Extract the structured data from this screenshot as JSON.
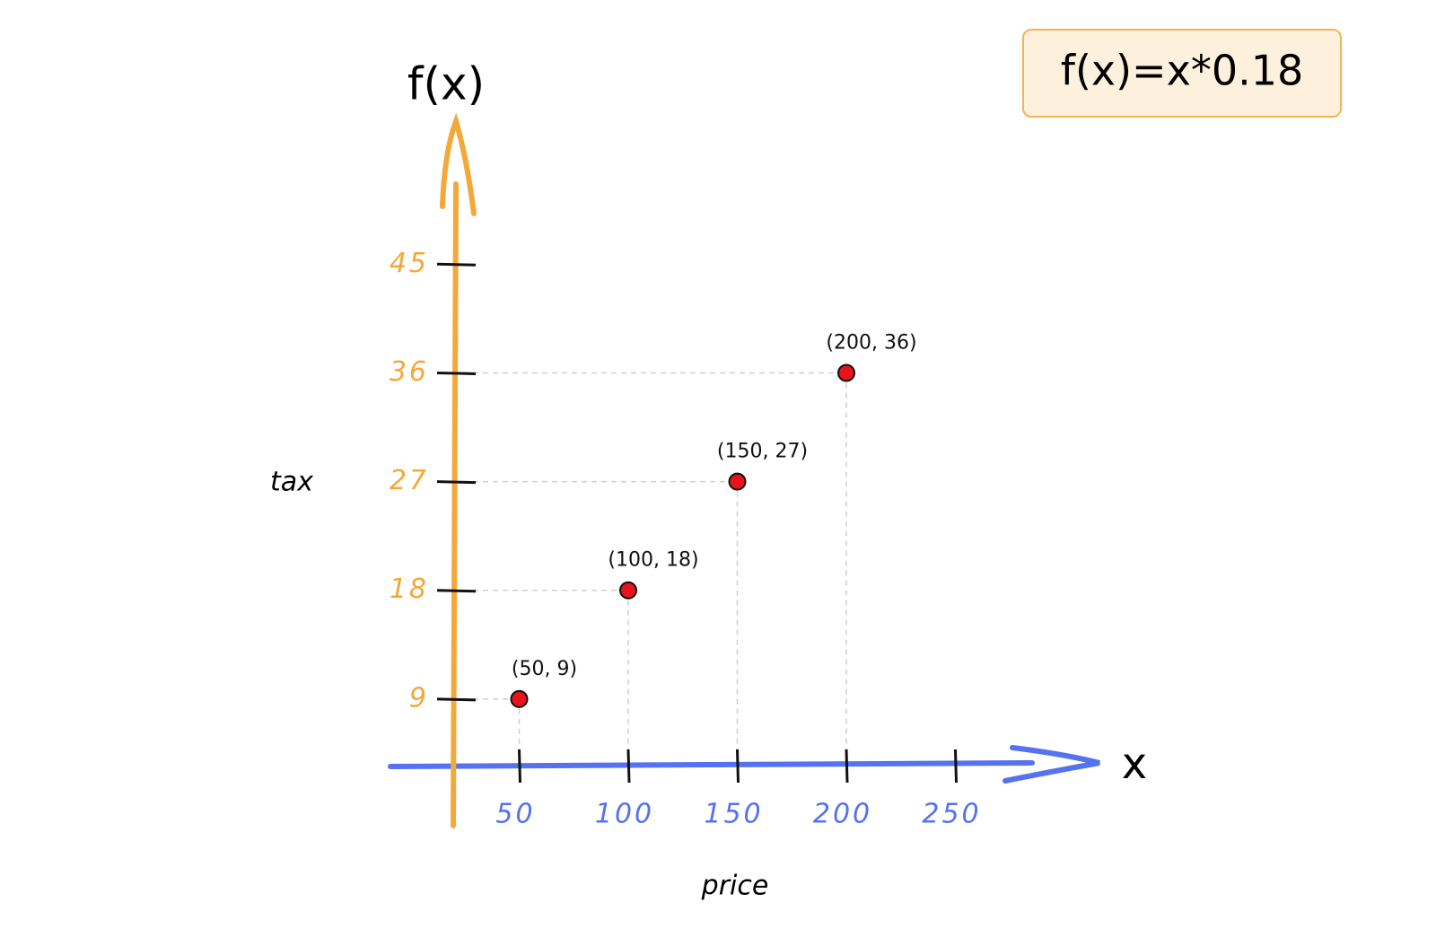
{
  "chart_data": {
    "type": "scatter",
    "y_label": "f(x)",
    "x_label": "x",
    "y_title": "tax",
    "x_title": "price",
    "annotation": "f(x)=x*0.18",
    "x": [
      50,
      100,
      150,
      200
    ],
    "values": [
      9,
      18,
      27,
      36
    ],
    "value_labels": [
      "(50, 9)",
      "(100, 18)",
      "(150, 27)",
      "(200, 36)"
    ],
    "color": "#e8141b",
    "x_axis_color": "#5572f0",
    "y_axis_color": "#f5a83a",
    "xlim": [
      0,
      300
    ],
    "ylim": [
      0,
      50
    ],
    "xticks": [
      50,
      100,
      150,
      200,
      250
    ],
    "yticks": [
      9,
      18,
      27,
      36,
      45
    ],
    "grid": false
  }
}
